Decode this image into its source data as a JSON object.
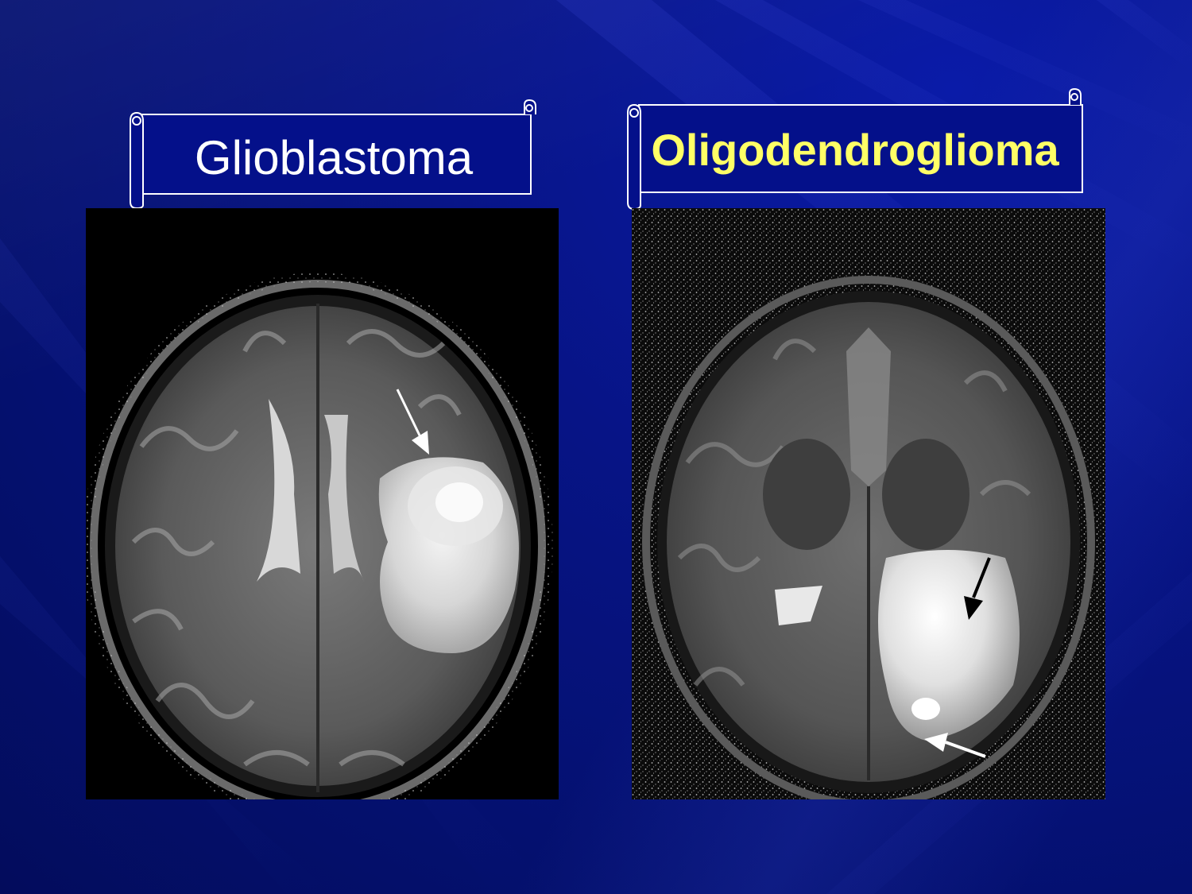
{
  "slide": {
    "background_color": "#071486",
    "panels": [
      {
        "label": "Glioblastoma",
        "label_color": "#ffffff",
        "image": "axial T2 MRI brain with left hemisphere hyperintense mass",
        "arrows": [
          "white-arrow"
        ]
      },
      {
        "label": "Oligodendroglioma",
        "label_color": "#ffff66",
        "image": "axial T2 MRI brain with posterior hyperintense mass",
        "arrows": [
          "black-arrow",
          "white-arrow"
        ]
      }
    ]
  }
}
